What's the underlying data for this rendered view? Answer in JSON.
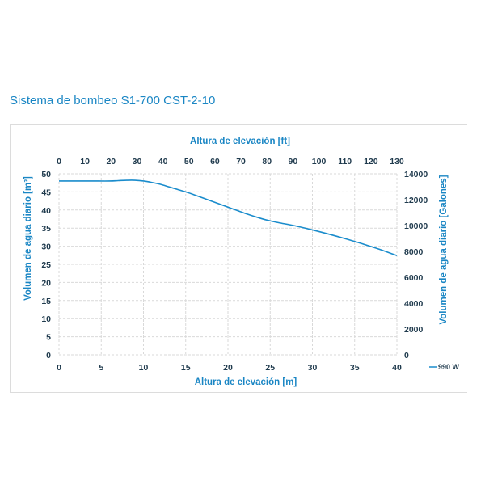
{
  "page_title": "Sistema de bombeo S1-700 CST-2-10",
  "chart_data": {
    "type": "line",
    "title": "Sistema de bombeo S1-700 CST-2-10",
    "xlabel": "Altura de elevación [m]",
    "x2label": "Altura de elevación [ft]",
    "ylabel": "Volumen de agua diario [m³]",
    "y2label": "Volumen de agua diario  [Galones]",
    "xlim": [
      0,
      40
    ],
    "ylim": [
      0,
      50
    ],
    "x2lim": [
      0,
      130
    ],
    "y2lim": [
      0,
      14000
    ],
    "x_ticks": [
      "0",
      "5",
      "10",
      "15",
      "20",
      "25",
      "30",
      "35",
      "40"
    ],
    "x2_ticks": [
      "0",
      "10",
      "20",
      "30",
      "40",
      "50",
      "60",
      "70",
      "80",
      "90",
      "100",
      "110",
      "120",
      "130"
    ],
    "y_ticks": [
      "0",
      "5",
      "10",
      "15",
      "20",
      "25",
      "30",
      "35",
      "40",
      "45",
      "50"
    ],
    "y2_ticks": [
      "0",
      "2000",
      "4000",
      "6000",
      "8000",
      "10000",
      "12000",
      "14000"
    ],
    "grid": true,
    "legend_position": "bottom-right",
    "series": [
      {
        "name": "990 W",
        "color": "#1a8ccc",
        "x": [
          0,
          2,
          4,
          6,
          7,
          8,
          9,
          10,
          11,
          12,
          13,
          14,
          15,
          16,
          18,
          20,
          22,
          24,
          25,
          26,
          28,
          30,
          32,
          34,
          36,
          38,
          40
        ],
        "y": [
          48,
          48,
          48,
          48,
          48.1,
          48.2,
          48.2,
          48,
          47.6,
          47.1,
          46.4,
          45.7,
          45,
          44.2,
          42.5,
          40.8,
          39.1,
          37.6,
          37,
          36.5,
          35.6,
          34.5,
          33.3,
          32,
          30.6,
          29.1,
          27.4
        ]
      }
    ]
  }
}
